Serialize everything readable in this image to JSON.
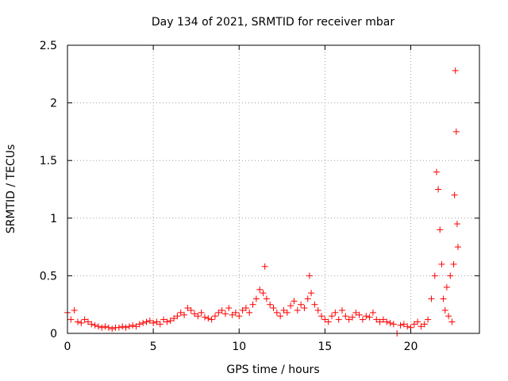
{
  "chart_data": {
    "type": "scatter",
    "title": "Day 134 of 2021, SRMTID for receiver mbar",
    "xlabel": "GPS time / hours",
    "ylabel": "SRMTID / TECUs",
    "xlim": [
      0,
      24
    ],
    "ylim": [
      0,
      2.5
    ],
    "xticks": [
      0,
      5,
      10,
      15,
      20
    ],
    "xtick_labels": [
      "0",
      "5",
      "10",
      "15",
      "20"
    ],
    "yticks": [
      0,
      0.5,
      1,
      1.5,
      2,
      2.5
    ],
    "ytick_labels": [
      "0",
      "0.5",
      "1",
      "1.5",
      "2",
      "2.5"
    ],
    "grid": true,
    "marker": "+",
    "series": [
      {
        "name": "SRMTID",
        "color": "#ff0000",
        "x": [
          0.0,
          0.2,
          0.4,
          0.6,
          0.8,
          1.0,
          1.2,
          1.4,
          1.6,
          1.8,
          2.0,
          2.2,
          2.4,
          2.6,
          2.8,
          3.0,
          3.2,
          3.4,
          3.6,
          3.8,
          4.0,
          4.2,
          4.4,
          4.6,
          4.8,
          5.0,
          5.2,
          5.4,
          5.6,
          5.8,
          6.0,
          6.2,
          6.4,
          6.6,
          6.8,
          7.0,
          7.2,
          7.4,
          7.6,
          7.8,
          8.0,
          8.2,
          8.4,
          8.6,
          8.8,
          9.0,
          9.2,
          9.4,
          9.6,
          9.8,
          10.0,
          10.2,
          10.4,
          10.6,
          10.8,
          11.0,
          11.2,
          11.4,
          11.5,
          11.6,
          11.8,
          12.0,
          12.2,
          12.4,
          12.6,
          12.8,
          13.0,
          13.2,
          13.4,
          13.6,
          13.8,
          14.0,
          14.1,
          14.2,
          14.4,
          14.6,
          14.8,
          15.0,
          15.2,
          15.4,
          15.6,
          15.8,
          16.0,
          16.2,
          16.4,
          16.6,
          16.8,
          17.0,
          17.2,
          17.4,
          17.6,
          17.8,
          18.0,
          18.2,
          18.4,
          18.6,
          18.8,
          19.0,
          19.2,
          19.4,
          19.6,
          19.8,
          20.0,
          20.2,
          20.4,
          20.6,
          20.8,
          21.0,
          21.2,
          21.4,
          21.5,
          21.6,
          21.7,
          21.8,
          21.9,
          22.0,
          22.1,
          22.2,
          22.3,
          22.4,
          22.5,
          22.55,
          22.6,
          22.65,
          22.7,
          22.75
        ],
        "y": [
          0.18,
          0.12,
          0.2,
          0.1,
          0.09,
          0.12,
          0.1,
          0.08,
          0.07,
          0.06,
          0.05,
          0.06,
          0.05,
          0.04,
          0.05,
          0.05,
          0.06,
          0.05,
          0.06,
          0.07,
          0.06,
          0.08,
          0.09,
          0.1,
          0.11,
          0.09,
          0.1,
          0.08,
          0.12,
          0.1,
          0.11,
          0.13,
          0.15,
          0.18,
          0.16,
          0.22,
          0.2,
          0.17,
          0.15,
          0.18,
          0.14,
          0.13,
          0.12,
          0.15,
          0.18,
          0.2,
          0.17,
          0.22,
          0.16,
          0.18,
          0.15,
          0.2,
          0.22,
          0.18,
          0.25,
          0.3,
          0.38,
          0.35,
          0.58,
          0.3,
          0.25,
          0.22,
          0.18,
          0.15,
          0.2,
          0.18,
          0.24,
          0.28,
          0.2,
          0.25,
          0.22,
          0.3,
          0.5,
          0.35,
          0.25,
          0.2,
          0.15,
          0.12,
          0.1,
          0.15,
          0.18,
          0.12,
          0.2,
          0.15,
          0.12,
          0.14,
          0.18,
          0.16,
          0.12,
          0.15,
          0.14,
          0.18,
          0.12,
          0.1,
          0.12,
          0.1,
          0.09,
          0.08,
          0.0,
          0.07,
          0.08,
          0.06,
          0.05,
          0.08,
          0.1,
          0.06,
          0.08,
          0.12,
          0.3,
          0.5,
          1.4,
          1.25,
          0.9,
          0.6,
          0.3,
          0.2,
          0.4,
          0.15,
          0.5,
          0.1,
          0.6,
          1.2,
          2.28,
          1.75,
          0.95,
          0.75
        ]
      }
    ]
  }
}
